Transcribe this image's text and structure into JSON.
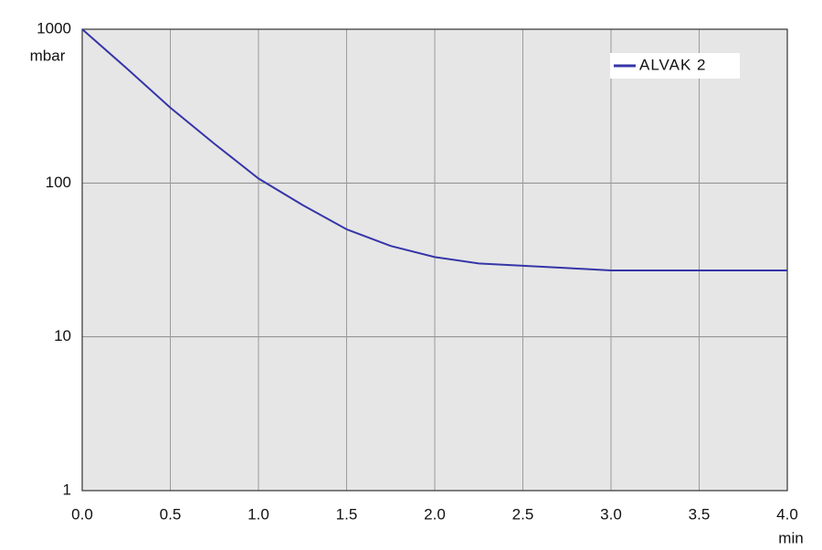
{
  "chart_data": {
    "type": "line",
    "x_label": "min",
    "y_label": "mbar",
    "x": [
      0,
      0.25,
      0.5,
      0.75,
      1.0,
      1.25,
      1.5,
      1.75,
      2.0,
      2.25,
      2.5,
      2.75,
      3.0,
      3.5,
      4.0
    ],
    "series": [
      {
        "name": "ALVAK 2",
        "color": "#3535a8",
        "values": [
          1000,
          560,
          309,
          180,
          107,
          72,
          50,
          39,
          33,
          30,
          29,
          28,
          27,
          27,
          27
        ]
      }
    ],
    "xlim": [
      0,
      4
    ],
    "xticks": [
      {
        "value": 0,
        "label": "0.0"
      },
      {
        "value": 0.5,
        "label": "0.5"
      },
      {
        "value": 1,
        "label": "1.0"
      },
      {
        "value": 1.5,
        "label": "1.5"
      },
      {
        "value": 2,
        "label": "2.0"
      },
      {
        "value": 2.5,
        "label": "2.5"
      },
      {
        "value": 3,
        "label": "3.0"
      },
      {
        "value": 3.5,
        "label": "3.5"
      },
      {
        "value": 4,
        "label": "4.0"
      }
    ],
    "ylim": [
      1,
      1000
    ],
    "yticks": [
      1,
      10,
      100,
      1000
    ],
    "y_scale": "log",
    "grid": true,
    "legend": "upper right"
  }
}
